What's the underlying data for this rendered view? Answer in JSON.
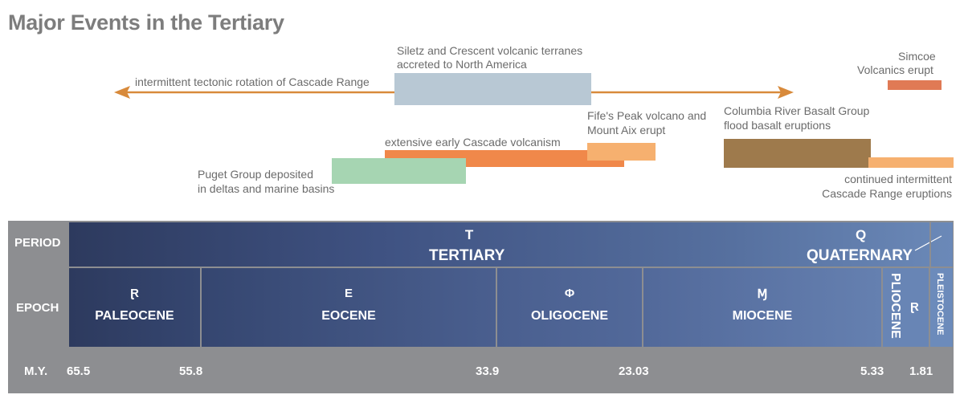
{
  "title": "Major Events in the Tertiary",
  "events": {
    "rotation": "intermittent tectonic rotation of Cascade Range",
    "siletz_line1": "Siletz and Crescent volcanic terranes",
    "siletz_line2": "accreted to North America",
    "simcoe_line1": "Simcoe",
    "simcoe_line2": "Volcanics erupt",
    "fifes_line1": "Fife's Peak volcano and",
    "fifes_line2": "Mount Aix erupt",
    "columbia_line1": "Columbia River Basalt Group",
    "columbia_line2": "flood basalt eruptions",
    "early_volcanism": "extensive early Cascade volcanism",
    "puget_line1": "Puget Group deposited",
    "puget_line2": "in deltas and marine basins",
    "continued_line1": "continued intermittent",
    "continued_line2": "Cascade Range eruptions"
  },
  "colors": {
    "arrow": "#d88a3b",
    "siletz": "#b8c8d4",
    "simcoe": "#e07a55",
    "fifes": "#f6b06f",
    "columbia": "#9e7a4c",
    "early_volcanism": "#f0884a",
    "puget": "#a6d5b2",
    "continued": "#f6b06f",
    "panel": "#8d8e91",
    "period_dark": "#2d3a5e",
    "period_light": "#6b89b8"
  },
  "table": {
    "period_header": "PERIOD",
    "epoch_header": "EPOCH",
    "my_header": "M.Y.",
    "tertiary_symbol": "T",
    "tertiary_name": "TERTIARY",
    "quaternary_symbol": "Q",
    "quaternary_name": "QUATERNARY",
    "epochs": [
      {
        "symbol": "Ɽ",
        "name": "PALEOCENE"
      },
      {
        "symbol": "E",
        "name": "EOCENE"
      },
      {
        "symbol": "Φ",
        "name": "OLIGOCENE"
      },
      {
        "symbol": "Ɱ",
        "name": "MIOCENE"
      },
      {
        "symbol": "Ɽ",
        "name": "PLIOCENE"
      },
      {
        "symbol": "",
        "name": "PLEISTOCENE"
      }
    ],
    "ages": [
      "65.5",
      "55.8",
      "33.9",
      "23.03",
      "5.33",
      "1.81"
    ]
  }
}
